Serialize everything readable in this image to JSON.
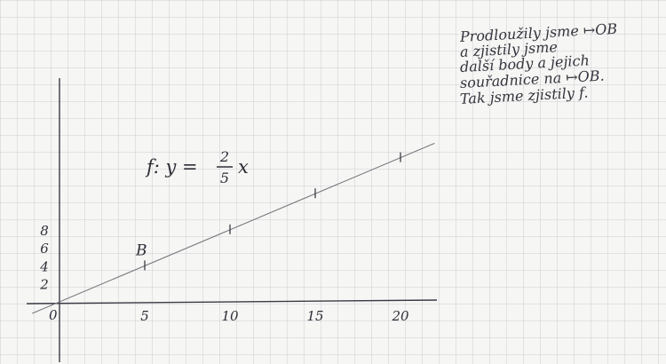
{
  "note": {
    "lines": [
      "Prodloužily jsme ↦OB",
      "a zjistily jsme",
      "další body a jejich",
      "souřadnice na ↦OB.",
      "Tak jsme zjistily f."
    ]
  },
  "formula": {
    "prefix": "f: y =",
    "numerator": "2",
    "denominator": "5",
    "variable": "x"
  },
  "point_label": "B",
  "axes": {
    "origin_label": "0",
    "x_ticks": [
      "5",
      "10",
      "15",
      "20"
    ],
    "y_ticks": [
      "2",
      "4",
      "6",
      "8"
    ]
  },
  "line": {
    "slope": 0.4,
    "marked_x": [
      5,
      10,
      15,
      20
    ]
  },
  "colors": {
    "ink": "#2e2e38",
    "pencil": "#7a7a80",
    "grid": "#c9cdd2"
  }
}
